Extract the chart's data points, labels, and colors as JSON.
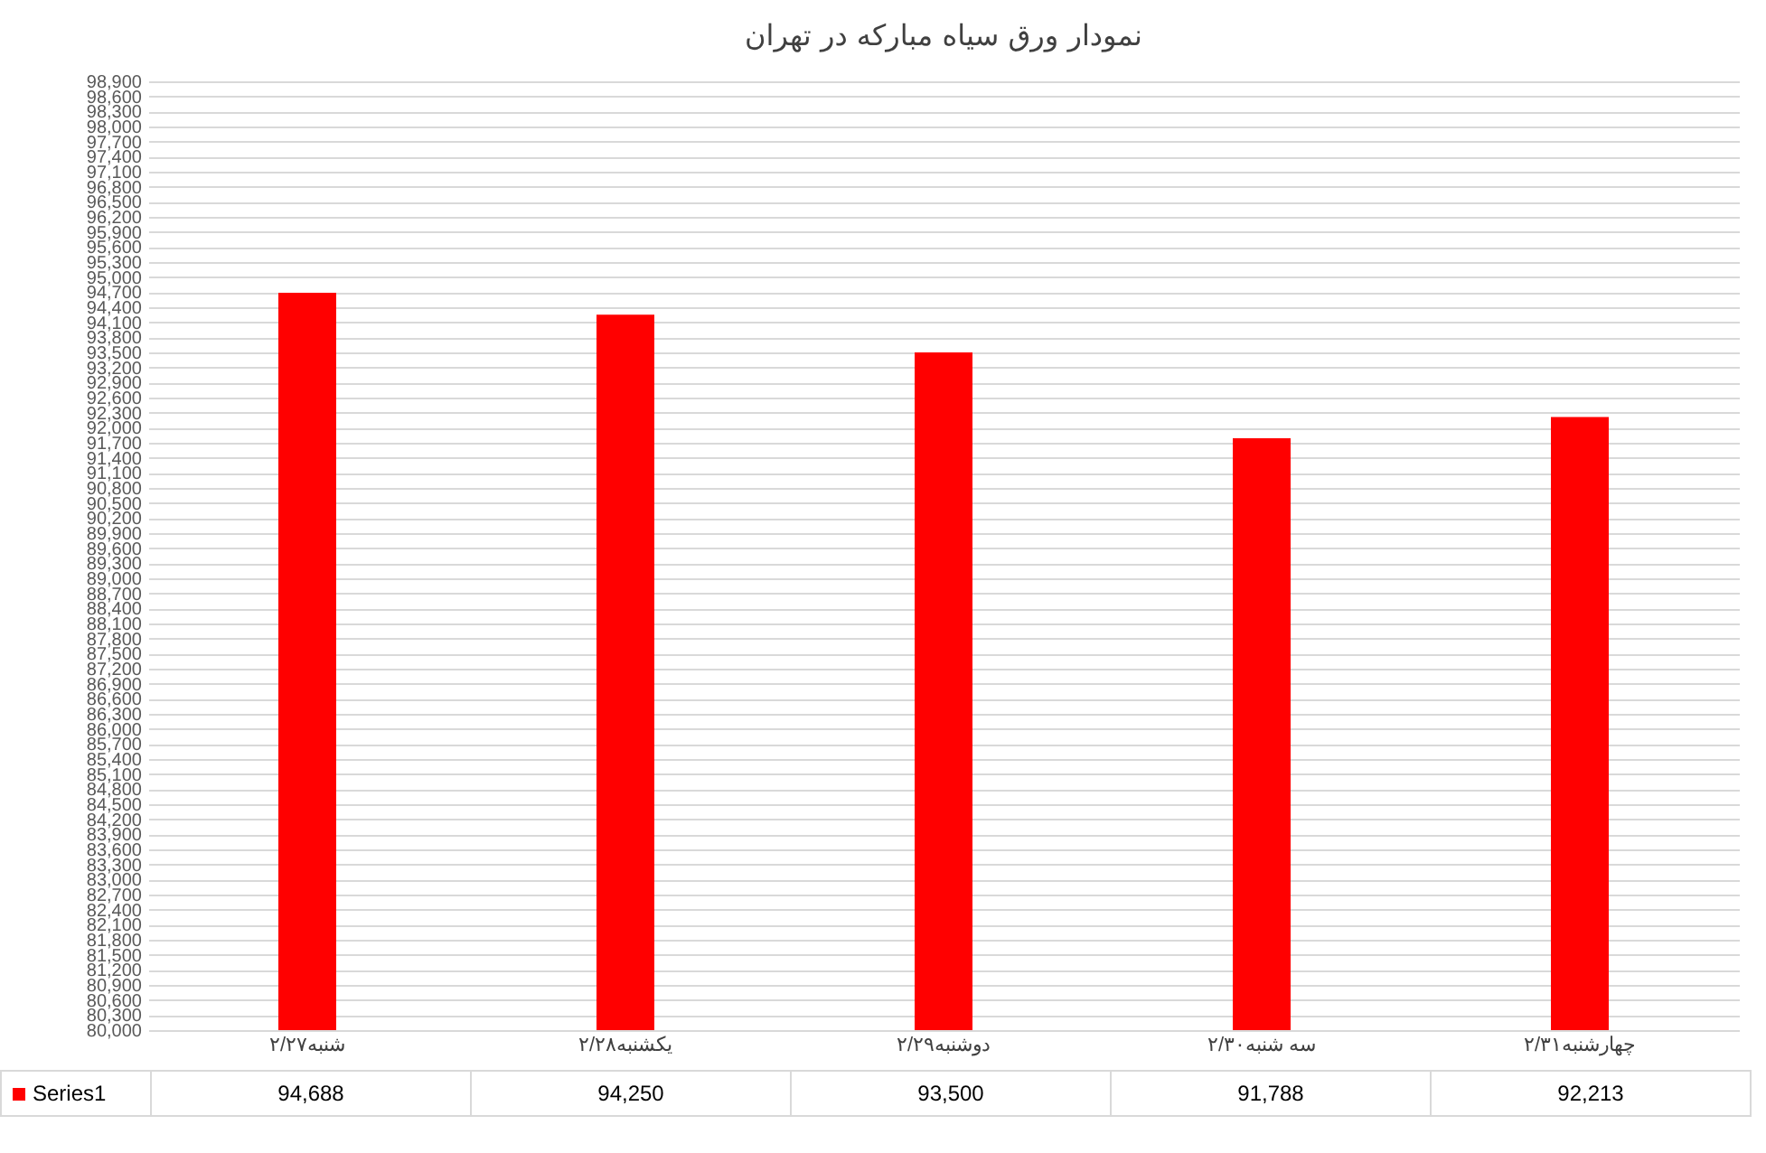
{
  "chart_data": {
    "type": "bar",
    "title": "نمودار ورق سیاه مبارکه در تهران",
    "categories": [
      "شنبه۲/۲۷",
      "یکشنبه۲/۲۸",
      "دوشنبه۲/۲۹",
      "سه شنبه۲/۳۰",
      "چهارشنبه۲/۳۱"
    ],
    "series": [
      {
        "name": "Series1",
        "color": "#ff0000",
        "values": [
          94688,
          94250,
          93500,
          91788,
          92213
        ],
        "value_labels": [
          "94,688",
          "94,250",
          "93,500",
          "91,788",
          "92,213"
        ]
      }
    ],
    "ylim": [
      80000,
      98900
    ],
    "yticks": [
      {
        "value": 80000,
        "label": "80,000"
      },
      {
        "value": 80300,
        "label": "80,300"
      },
      {
        "value": 80600,
        "label": "80,600"
      },
      {
        "value": 80900,
        "label": "80,900"
      },
      {
        "value": 81200,
        "label": "81,200"
      },
      {
        "value": 81500,
        "label": "81,500"
      },
      {
        "value": 81800,
        "label": "81,800"
      },
      {
        "value": 82100,
        "label": "82,100"
      },
      {
        "value": 82400,
        "label": "82,400"
      },
      {
        "value": 82700,
        "label": "82,700"
      },
      {
        "value": 83000,
        "label": "83,000"
      },
      {
        "value": 83300,
        "label": "83,300"
      },
      {
        "value": 83600,
        "label": "83,600"
      },
      {
        "value": 83900,
        "label": "83,900"
      },
      {
        "value": 84200,
        "label": "84,200"
      },
      {
        "value": 84500,
        "label": "84,500"
      },
      {
        "value": 84800,
        "label": "84,800"
      },
      {
        "value": 85100,
        "label": "85,100"
      },
      {
        "value": 85400,
        "label": "85,400"
      },
      {
        "value": 85700,
        "label": "85,700"
      },
      {
        "value": 86000,
        "label": "86,000"
      },
      {
        "value": 86300,
        "label": "86,300"
      },
      {
        "value": 86600,
        "label": "86,600"
      },
      {
        "value": 86900,
        "label": "86,900"
      },
      {
        "value": 87200,
        "label": "87,200"
      },
      {
        "value": 87500,
        "label": "87,500"
      },
      {
        "value": 87800,
        "label": "87,800"
      },
      {
        "value": 88100,
        "label": "88,100"
      },
      {
        "value": 88400,
        "label": "88,400"
      },
      {
        "value": 88700,
        "label": "88,700"
      },
      {
        "value": 89000,
        "label": "89,000"
      },
      {
        "value": 89300,
        "label": "89,300"
      },
      {
        "value": 89600,
        "label": "89,600"
      },
      {
        "value": 89900,
        "label": "89,900"
      },
      {
        "value": 90200,
        "label": "90,200"
      },
      {
        "value": 90500,
        "label": "90,500"
      },
      {
        "value": 90800,
        "label": "90,800"
      },
      {
        "value": 91100,
        "label": "91,100"
      },
      {
        "value": 91400,
        "label": "91,400"
      },
      {
        "value": 91700,
        "label": "91,700"
      },
      {
        "value": 92000,
        "label": "92,000"
      },
      {
        "value": 92300,
        "label": "92,300"
      },
      {
        "value": 92600,
        "label": "92,600"
      },
      {
        "value": 92900,
        "label": "92,900"
      },
      {
        "value": 93200,
        "label": "93,200"
      },
      {
        "value": 93500,
        "label": "93,500"
      },
      {
        "value": 93800,
        "label": "93,800"
      },
      {
        "value": 94100,
        "label": "94,100"
      },
      {
        "value": 94400,
        "label": "94,400"
      },
      {
        "value": 94700,
        "label": "94,700"
      },
      {
        "value": 95000,
        "label": "95,000"
      },
      {
        "value": 95300,
        "label": "95,300"
      },
      {
        "value": 95600,
        "label": "95,600"
      },
      {
        "value": 95900,
        "label": "95,900"
      },
      {
        "value": 96200,
        "label": "96,200"
      },
      {
        "value": 96500,
        "label": "96,500"
      },
      {
        "value": 96800,
        "label": "96,800"
      },
      {
        "value": 97100,
        "label": "97,100"
      },
      {
        "value": 97400,
        "label": "97,400"
      },
      {
        "value": 97700,
        "label": "97,700"
      },
      {
        "value": 98000,
        "label": "98,000"
      },
      {
        "value": 98300,
        "label": "98,300"
      },
      {
        "value": 98600,
        "label": "98,600"
      },
      {
        "value": 98900,
        "label": "98,900"
      }
    ],
    "grid": "y",
    "legend": "bottom"
  }
}
